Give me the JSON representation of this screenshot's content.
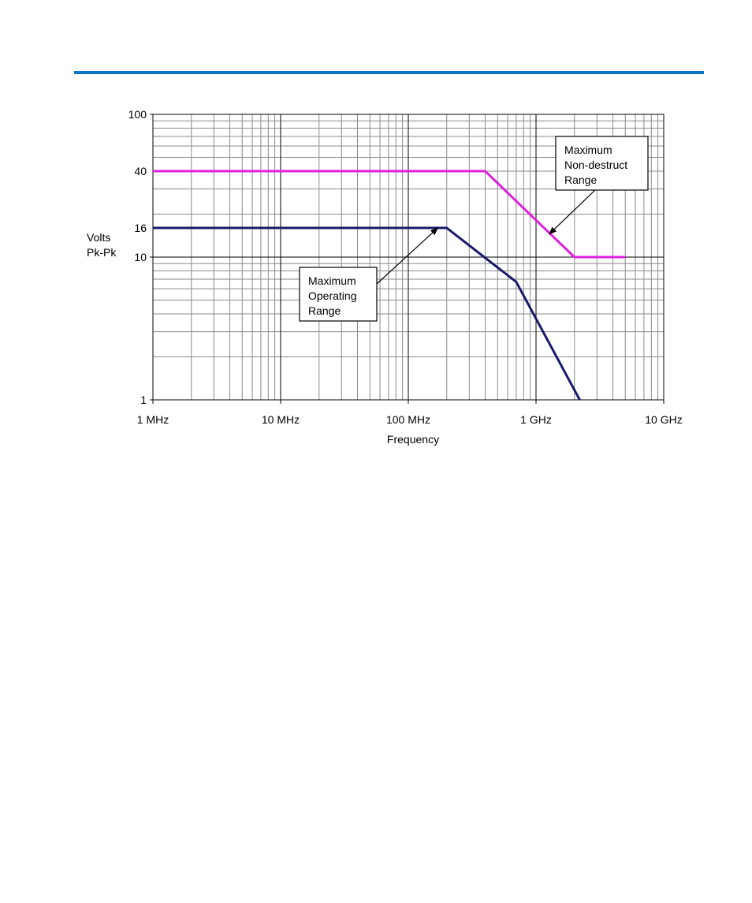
{
  "page": {
    "rule_color": "#0a78c8"
  },
  "chart_data": {
    "type": "line",
    "title": "",
    "xlabel": "Frequency",
    "ylabel": [
      "Volts",
      "Pk-Pk"
    ],
    "x_scale": "log",
    "y_scale": "log",
    "xlim_hz": [
      1000000,
      10000000000
    ],
    "ylim": [
      1,
      100
    ],
    "grid": true,
    "x_ticks": [
      {
        "value": 1000000,
        "label": "1 MHz"
      },
      {
        "value": 10000000,
        "label": "10 MHz"
      },
      {
        "value": 100000000,
        "label": "100 MHz"
      },
      {
        "value": 1000000000,
        "label": "1 GHz"
      },
      {
        "value": 10000000000,
        "label": "10 GHz"
      }
    ],
    "y_ticks": [
      {
        "value": 100,
        "label": "100"
      },
      {
        "value": 40,
        "label": "40"
      },
      {
        "value": 16,
        "label": "16"
      },
      {
        "value": 10,
        "label": "10"
      },
      {
        "value": 1,
        "label": "1"
      }
    ],
    "reference_line_y": 10,
    "series": [
      {
        "name": "Maximum Operating Range",
        "color": "#1a1a6e",
        "x_hz": [
          1000000,
          200000000,
          700000000,
          2200000000
        ],
        "y": [
          16,
          16,
          6.7,
          1
        ]
      },
      {
        "name": "Maximum Non-destruct Range",
        "color": "#e020e0",
        "x_hz": [
          1000000,
          400000000,
          800000000,
          2000000000,
          5000000000
        ],
        "y": [
          40,
          40,
          22,
          10,
          10
        ]
      }
    ],
    "annotations": [
      {
        "lines": [
          "Maximum",
          "Operating",
          "Range"
        ],
        "points_to_series": "Maximum Operating Range",
        "target_x_hz": 170000000,
        "target_y": 16
      },
      {
        "lines": [
          "Maximum",
          "Non-destruct",
          "Range"
        ],
        "points_to_series": "Maximum Non-destruct Range",
        "target_x_hz": 1270000000,
        "target_y": 14.5
      }
    ]
  }
}
